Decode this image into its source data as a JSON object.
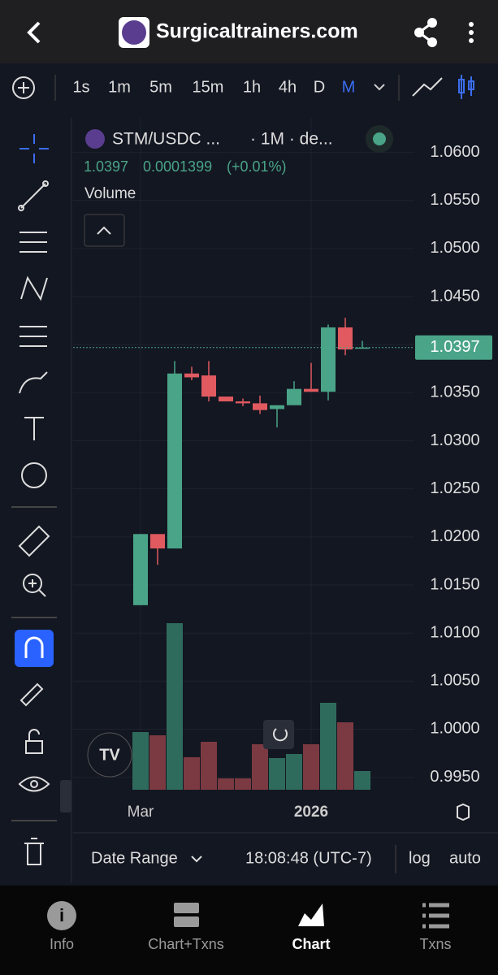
{
  "header": {
    "title": "Surgicaltrainers.com"
  },
  "toolbar": {
    "timeframes": [
      "1s",
      "1m",
      "5m",
      "15m",
      "1h",
      "4h",
      "D",
      "M"
    ]
  },
  "legend": {
    "symbol": "STM/USDC ...",
    "interval": "· 1M · de...",
    "last": "1.0397",
    "change": "0.0001399",
    "change_pct": "(+0.01%)",
    "study": "Volume"
  },
  "chart_data": {
    "type": "candlestick",
    "title": "STM/USDC ...",
    "categories": [
      "Mar",
      null,
      null,
      null,
      null,
      null,
      null,
      null,
      null,
      null,
      "2026",
      null,
      null,
      null
    ],
    "open": [
      1.0129,
      1.0203,
      1.0188,
      1.037,
      1.0368,
      1.0346,
      1.0341,
      1.0339,
      1.0333,
      1.0337,
      1.0354,
      1.0351,
      1.0418,
      1.0396
    ],
    "high": [
      1.0203,
      1.0203,
      1.0383,
      1.0377,
      1.0383,
      1.0346,
      1.0344,
      1.0347,
      1.0337,
      1.0362,
      1.0381,
      1.0421,
      1.0428,
      1.0404
    ],
    "low": [
      1.0129,
      1.0171,
      1.0188,
      1.0363,
      1.0341,
      1.0341,
      1.0336,
      1.0328,
      1.0314,
      1.0337,
      1.0351,
      1.0342,
      1.0389,
      1.0396
    ],
    "close": [
      1.0203,
      1.0188,
      1.037,
      1.0366,
      1.0346,
      1.0341,
      1.0339,
      1.0332,
      1.0337,
      1.0354,
      1.0351,
      1.0418,
      1.0395,
      1.0397
    ],
    "volume": [
      71,
      67,
      205,
      40,
      59,
      14,
      14,
      56,
      39,
      44,
      56,
      107,
      83,
      23
    ],
    "up_color": "#4aa487",
    "down_color": "#e05a60",
    "volume_up_color": "#2f6b5c",
    "volume_down_color": "#7b3a41",
    "ylim": [
      0.9937,
      1.0636
    ],
    "yticks": [
      {
        "value": 1.06,
        "label": "1.0600"
      },
      {
        "value": 1.055,
        "label": "1.0550"
      },
      {
        "value": 1.05,
        "label": "1.0500"
      },
      {
        "value": 1.045,
        "label": "1.0450"
      },
      {
        "value": 1.04,
        "label": "1.0400"
      },
      {
        "value": 1.035,
        "label": "1.0350"
      },
      {
        "value": 1.03,
        "label": "1.0300"
      },
      {
        "value": 1.025,
        "label": "1.0250"
      },
      {
        "value": 1.02,
        "label": "1.0200"
      },
      {
        "value": 1.015,
        "label": "1.0150"
      },
      {
        "value": 1.01,
        "label": "1.0100"
      },
      {
        "value": 1.005,
        "label": "1.0050"
      },
      {
        "value": 1.0,
        "label": "1.0000"
      },
      {
        "value": 0.995,
        "label": "0.9950"
      }
    ],
    "last_price": {
      "value": 1.0397,
      "label": "1.0397"
    },
    "grid": true
  },
  "footer": {
    "date_range": "Date Range",
    "time": "18:08:48 (UTC-7)",
    "log": "log",
    "auto": "auto"
  },
  "nav": {
    "items": [
      "Info",
      "Chart+Txns",
      "Chart",
      "Txns"
    ]
  }
}
